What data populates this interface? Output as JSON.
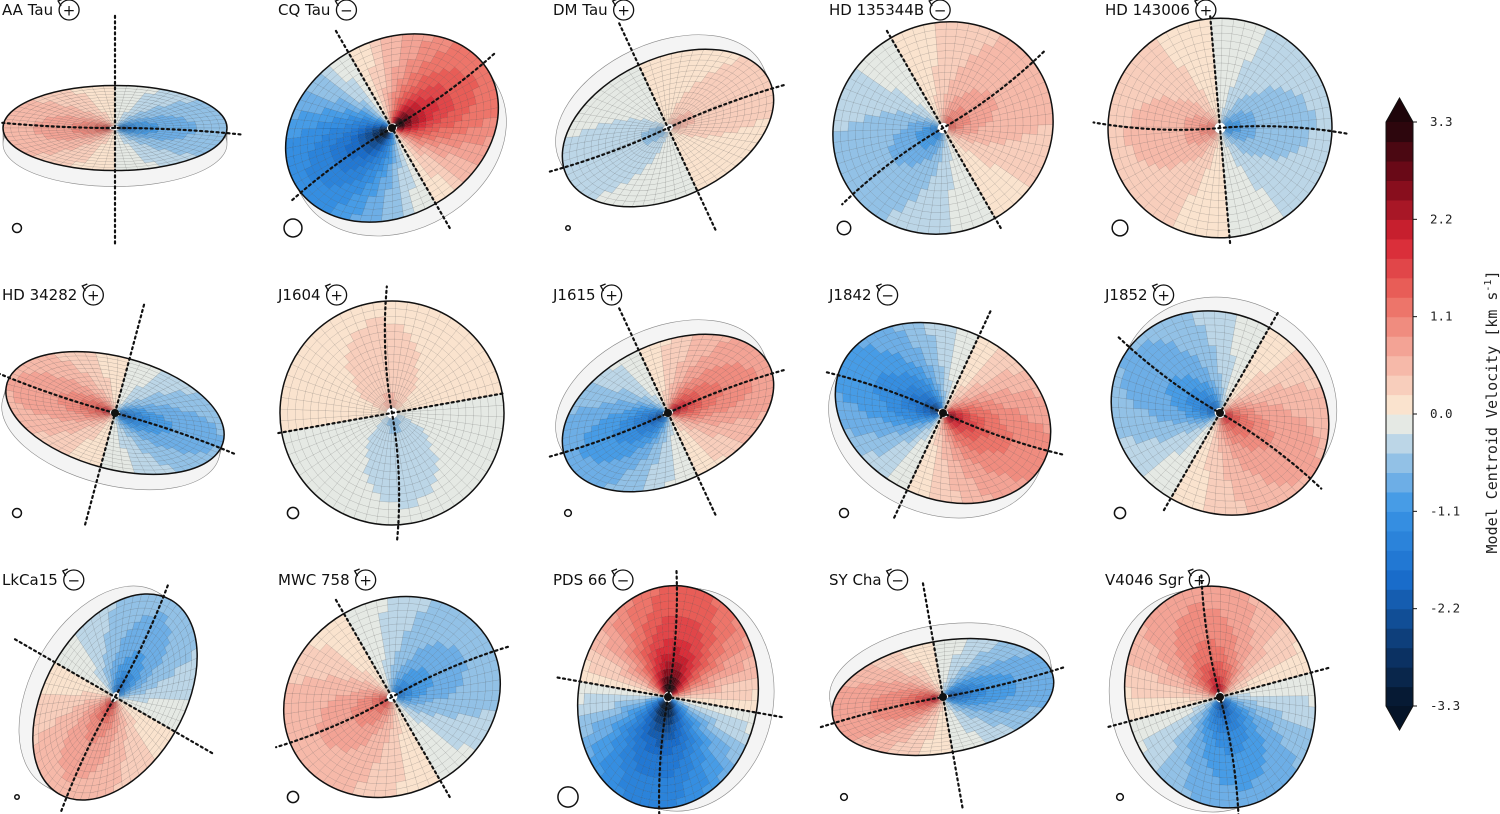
{
  "chart_data": {
    "type": "velocity-map-grid",
    "colorbar": {
      "label": "Model Centroid Velocity [km s",
      "label_sup": "-1",
      "label_end": "]",
      "min": -3.3,
      "max": 3.3,
      "ticks": [
        "3.3",
        "2.2",
        "1.1",
        "0.0",
        "-1.1",
        "-2.2",
        "-3.3"
      ],
      "tick_values": [
        3.3,
        2.2,
        1.1,
        0.0,
        -1.1,
        -2.2,
        -3.3
      ],
      "levels": 30,
      "colormap": "RdBu_r"
    },
    "panels": [
      {
        "name": "AA Tau",
        "sign": "+",
        "vmax": 1.4,
        "inc_axis_ratio": 0.38,
        "pa": 180,
        "back_disk": true,
        "beam": 0.04,
        "center_dark": false
      },
      {
        "name": "CQ Tau",
        "sign": "−",
        "vmax": 3.0,
        "inc_axis_ratio": 0.78,
        "pa": 150,
        "back_disk": true,
        "beam": 0.08,
        "center_dark": true
      },
      {
        "name": "DM Tau",
        "sign": "+",
        "vmax": 0.6,
        "inc_axis_ratio": 0.62,
        "pa": 335,
        "back_disk": true,
        "beam": 0.02,
        "center_dark": false
      },
      {
        "name": "HD 135344B",
        "sign": "−",
        "vmax": 1.2,
        "inc_axis_ratio": 0.93,
        "pa": 150,
        "back_disk": false,
        "beam": 0.06,
        "center_dark": false
      },
      {
        "name": "HD 143006",
        "sign": "+",
        "vmax": 1.0,
        "inc_axis_ratio": 0.98,
        "pa": 175,
        "back_disk": false,
        "beam": 0.07,
        "center_dark": false
      },
      {
        "name": "HD 34282",
        "sign": "+",
        "vmax": 1.6,
        "inc_axis_ratio": 0.5,
        "pa": 195,
        "back_disk": true,
        "beam": 0.04,
        "center_dark": true
      },
      {
        "name": "J1604",
        "sign": "+",
        "vmax": 0.5,
        "inc_axis_ratio": 1.0,
        "pa": 260,
        "back_disk": false,
        "beam": 0.05,
        "center_dark": false
      },
      {
        "name": "J1615",
        "sign": "+",
        "vmax": 2.0,
        "inc_axis_ratio": 0.62,
        "pa": 335,
        "back_disk": true,
        "beam": 0.03,
        "center_dark": true
      },
      {
        "name": "J1842",
        "sign": "−",
        "vmax": 2.2,
        "inc_axis_ratio": 0.76,
        "pa": 205,
        "back_disk": true,
        "beam": 0.04,
        "center_dark": true
      },
      {
        "name": "J1852",
        "sign": "+",
        "vmax": 1.6,
        "inc_axis_ratio": 0.88,
        "pa": 30,
        "back_disk": true,
        "beam": 0.05,
        "center_dark": true
      },
      {
        "name": "LkCa15",
        "sign": "−",
        "vmax": 1.5,
        "inc_axis_ratio": 0.62,
        "pa": 300,
        "back_disk": true,
        "beam": 0.02,
        "center_dark": false
      },
      {
        "name": "MWC 758",
        "sign": "+",
        "vmax": 1.4,
        "inc_axis_ratio": 0.86,
        "pa": 150,
        "back_disk": false,
        "beam": 0.05,
        "center_dark": false
      },
      {
        "name": "PDS 66",
        "sign": "−",
        "vmax": 3.3,
        "inc_axis_ratio": 0.8,
        "pa": 100,
        "back_disk": true,
        "beam": 0.09,
        "center_dark": true
      },
      {
        "name": "SY Cha",
        "sign": "−",
        "vmax": 1.8,
        "inc_axis_ratio": 0.5,
        "pa": 350,
        "back_disk": true,
        "beam": 0.03,
        "center_dark": true
      },
      {
        "name": "V4046 Sgr",
        "sign": "+",
        "vmax": 2.0,
        "inc_axis_ratio": 0.84,
        "pa": 255,
        "back_disk": true,
        "beam": 0.03,
        "center_dark": true
      }
    ]
  }
}
